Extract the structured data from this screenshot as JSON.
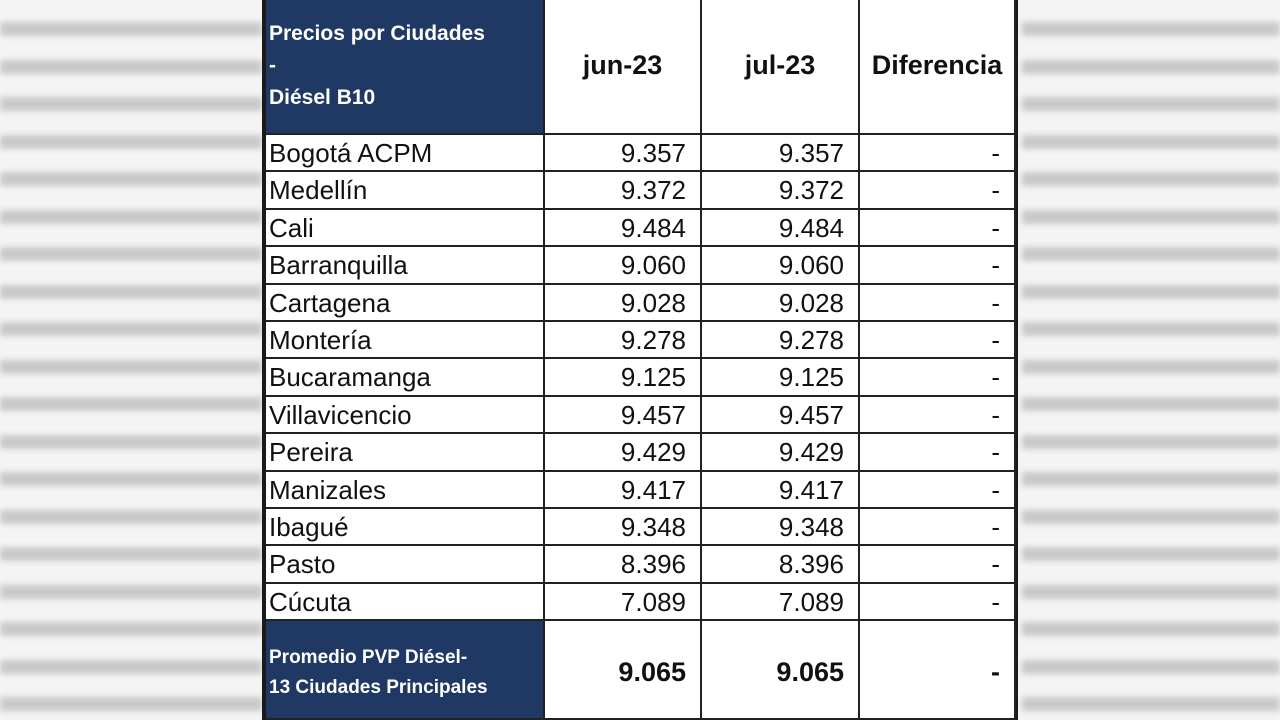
{
  "header": {
    "title_lines": [
      "Precios por Ciudades",
      "-",
      "Diésel B10"
    ],
    "columns": [
      "jun-23",
      "jul-23",
      "Diferencia"
    ]
  },
  "table": {
    "rows": [
      [
        "Bogotá ACPM",
        "9.357",
        "9.357",
        "-"
      ],
      [
        "Medellín",
        "9.372",
        "9.372",
        "-"
      ],
      [
        "Cali",
        "9.484",
        "9.484",
        "-"
      ],
      [
        "Barranquilla",
        "9.060",
        "9.060",
        "-"
      ],
      [
        "Cartagena",
        "9.028",
        "9.028",
        "-"
      ],
      [
        "Montería",
        "9.278",
        "9.278",
        "-"
      ],
      [
        "Bucaramanga",
        "9.125",
        "9.125",
        "-"
      ],
      [
        "Villavicencio",
        "9.457",
        "9.457",
        "-"
      ],
      [
        "Pereira",
        "9.429",
        "9.429",
        "-"
      ],
      [
        "Manizales",
        "9.417",
        "9.417",
        "-"
      ],
      [
        "Ibagué",
        "9.348",
        "9.348",
        "-"
      ],
      [
        "Pasto",
        "8.396",
        "8.396",
        "-"
      ],
      [
        "Cúcuta",
        "7.089",
        "7.089",
        "-"
      ]
    ]
  },
  "footer": {
    "label_lines": [
      "Promedio PVP Diésel-",
      "13 Ciudades Principales"
    ],
    "values": [
      "9.065",
      "9.065",
      "-"
    ]
  }
}
